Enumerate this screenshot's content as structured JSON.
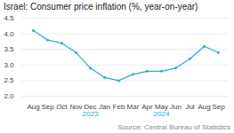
{
  "chart_data": {
    "type": "line",
    "title": "Israel: Consumer price inflation (%, year-on-year)",
    "caption": "Source: Central Bureau of Statistics",
    "categories": [
      "Aug",
      "Sep",
      "Oct",
      "Nov",
      "Dec",
      "Jan",
      "Feb",
      "Mar",
      "Apr",
      "May",
      "Jun",
      "Jul",
      "Aug",
      "Sep"
    ],
    "values": [
      4.1,
      3.8,
      3.7,
      3.4,
      2.9,
      2.6,
      2.5,
      2.7,
      2.8,
      2.8,
      2.9,
      3.2,
      3.6,
      3.4
    ],
    "color": "#29ABD4",
    "marker": "circle",
    "ylim": [
      2.0,
      4.5
    ],
    "yticks": [
      {
        "value": 2.0,
        "label": "2.0"
      },
      2.5,
      {
        "value": 3.0,
        "label": "3.0"
      },
      3.5,
      {
        "value": 4.0,
        "label": "4.0"
      },
      4.5
    ],
    "grid": true,
    "annotations": [
      {
        "text": "2023",
        "x": 4
      },
      {
        "text": "2024",
        "x": 9
      }
    ]
  }
}
